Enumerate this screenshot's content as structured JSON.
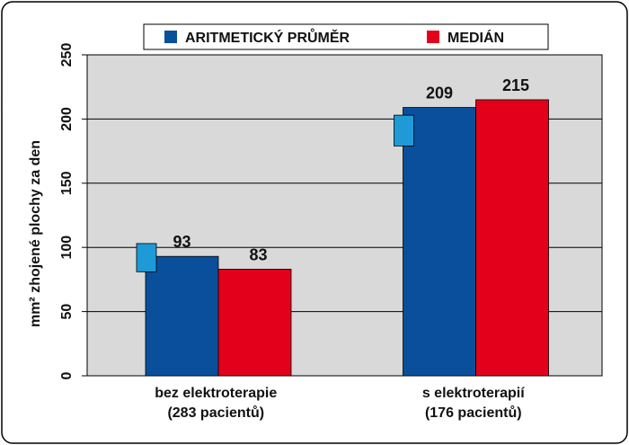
{
  "chart_data": {
    "type": "bar",
    "categories": [
      [
        "bez elektroterapie",
        "(283 pacientů)"
      ],
      [
        "s elektroterapií",
        "(176 pacientů)"
      ]
    ],
    "series": [
      {
        "name": "ARITMETICKÝ PRŮMĚR",
        "values": [
          93,
          209
        ],
        "color": "#0a4f9c"
      },
      {
        "name": "MEDIÁN",
        "values": [
          83,
          215
        ],
        "color": "#e2001a"
      }
    ],
    "error_markers": [
      {
        "category_index": 0,
        "low": 81,
        "high": 103
      },
      {
        "category_index": 1,
        "low": 179,
        "high": 203
      }
    ],
    "error_marker_color": "#1e9ad6",
    "ylabel": "mm² zhojené plochy za den",
    "ylim": [
      0,
      250
    ],
    "yticks": [
      0,
      50,
      100,
      150,
      200,
      250
    ],
    "grid": true,
    "legend_position": "top-center",
    "plot_background": "#d9d9d9",
    "frame_color": "#000000"
  }
}
